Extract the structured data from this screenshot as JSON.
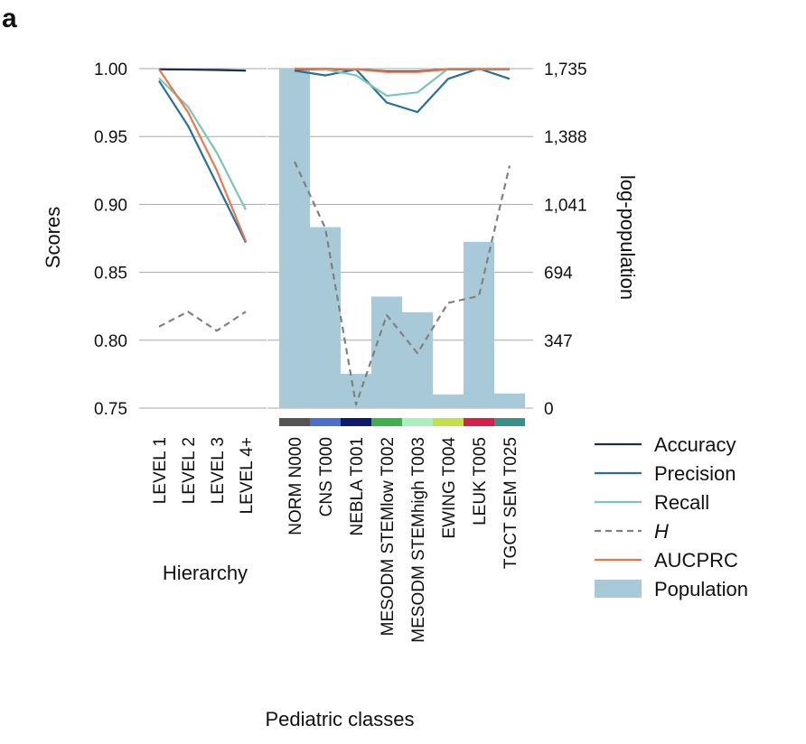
{
  "panel_label": "a",
  "chart_data": [
    {
      "type": "line",
      "xlabel": "Hierarchy",
      "ylabel": "Scores",
      "ylim": [
        0.75,
        1.0
      ],
      "yticks": [
        "0.75",
        "0.80",
        "0.85",
        "0.90",
        "0.95",
        "1.00"
      ],
      "categories": [
        "LEVEL 1",
        "LEVEL 2",
        "LEVEL 3",
        "LEVEL 4+"
      ],
      "grid": "horizontal",
      "series": [
        {
          "name": "Accuracy",
          "color": "#1b2f4a",
          "dash": "solid",
          "values": [
            0.9995,
            0.9993,
            0.999,
            0.9985
          ]
        },
        {
          "name": "Precision",
          "color": "#2a6f97",
          "dash": "solid",
          "values": [
            0.991,
            0.958,
            0.915,
            0.872
          ]
        },
        {
          "name": "Recall",
          "color": "#7cc6b6",
          "dash": "solid",
          "values": [
            0.993,
            0.972,
            0.938,
            0.896
          ]
        },
        {
          "name": "H",
          "color": "#808080",
          "dash": "dashed",
          "values": [
            0.81,
            0.821,
            0.807,
            0.821
          ]
        },
        {
          "name": "AUCPRC",
          "color": "#e8784f",
          "dash": "solid",
          "values": [
            0.9995,
            0.968,
            0.925,
            0.873
          ]
        }
      ]
    },
    {
      "type": "bar+line",
      "xlabel": "Pediatric classes",
      "ylabel_right": "log-population",
      "ylim": [
        0.75,
        1.0
      ],
      "y2lim": [
        0,
        1735
      ],
      "y2ticks": [
        "0",
        "347",
        "694",
        "1,041",
        "1,388",
        "1,735"
      ],
      "categories": [
        "NORM N000",
        "CNS T000",
        "NEBLA T001",
        "MESODM STEMlow T002",
        "MESODM STEMhigh T003",
        "EWING T004",
        "LEUK T005",
        "TGCT SEM T025"
      ],
      "category_colors": [
        "#555555",
        "#4a6fd1",
        "#0d1a6e",
        "#3db24a",
        "#a8f0c0",
        "#c2e04a",
        "#d81e4a",
        "#3a9088"
      ],
      "bars": {
        "name": "Population",
        "color": "#a8c9d8",
        "values": [
          1735,
          925,
          175,
          570,
          490,
          70,
          850,
          75
        ]
      },
      "series": [
        {
          "name": "Accuracy",
          "color": "#1b2f4a",
          "dash": "solid",
          "values": [
            0.9995,
            0.9995,
            0.9995,
            0.998,
            0.998,
            0.9995,
            0.9995,
            0.9995
          ]
        },
        {
          "name": "Precision",
          "color": "#2a6f97",
          "dash": "solid",
          "values": [
            0.9985,
            0.995,
            0.9995,
            0.975,
            0.968,
            0.9925,
            1.0,
            0.9925
          ]
        },
        {
          "name": "Recall",
          "color": "#7cc6b6",
          "dash": "solid",
          "values": [
            1.0,
            0.9995,
            0.995,
            0.98,
            0.9825,
            1.0,
            1.0,
            1.0
          ]
        },
        {
          "name": "H",
          "color": "#808080",
          "dash": "dashed",
          "values": [
            0.9315,
            0.8825,
            0.7525,
            0.8185,
            0.7905,
            0.8275,
            0.8325,
            0.9285
          ]
        },
        {
          "name": "AUCPRC",
          "color": "#e8784f",
          "dash": "solid",
          "values": [
            1.0,
            1.0,
            0.9995,
            0.9975,
            0.9975,
            0.9995,
            0.9995,
            0.9995
          ]
        }
      ]
    }
  ],
  "legend": {
    "placement": "bottom-right",
    "items": [
      {
        "label": "Accuracy",
        "type": "line",
        "color": "#1b2f4a"
      },
      {
        "label": "Precision",
        "type": "line",
        "color": "#2a6f97"
      },
      {
        "label": "Recall",
        "type": "line",
        "color": "#7cc6b6"
      },
      {
        "label": "H",
        "type": "dashed",
        "color": "#808080",
        "italic": true
      },
      {
        "label": "AUCPRC",
        "type": "line",
        "color": "#e8784f"
      },
      {
        "label": "Population",
        "type": "patch",
        "color": "#a8c9d8"
      }
    ]
  }
}
